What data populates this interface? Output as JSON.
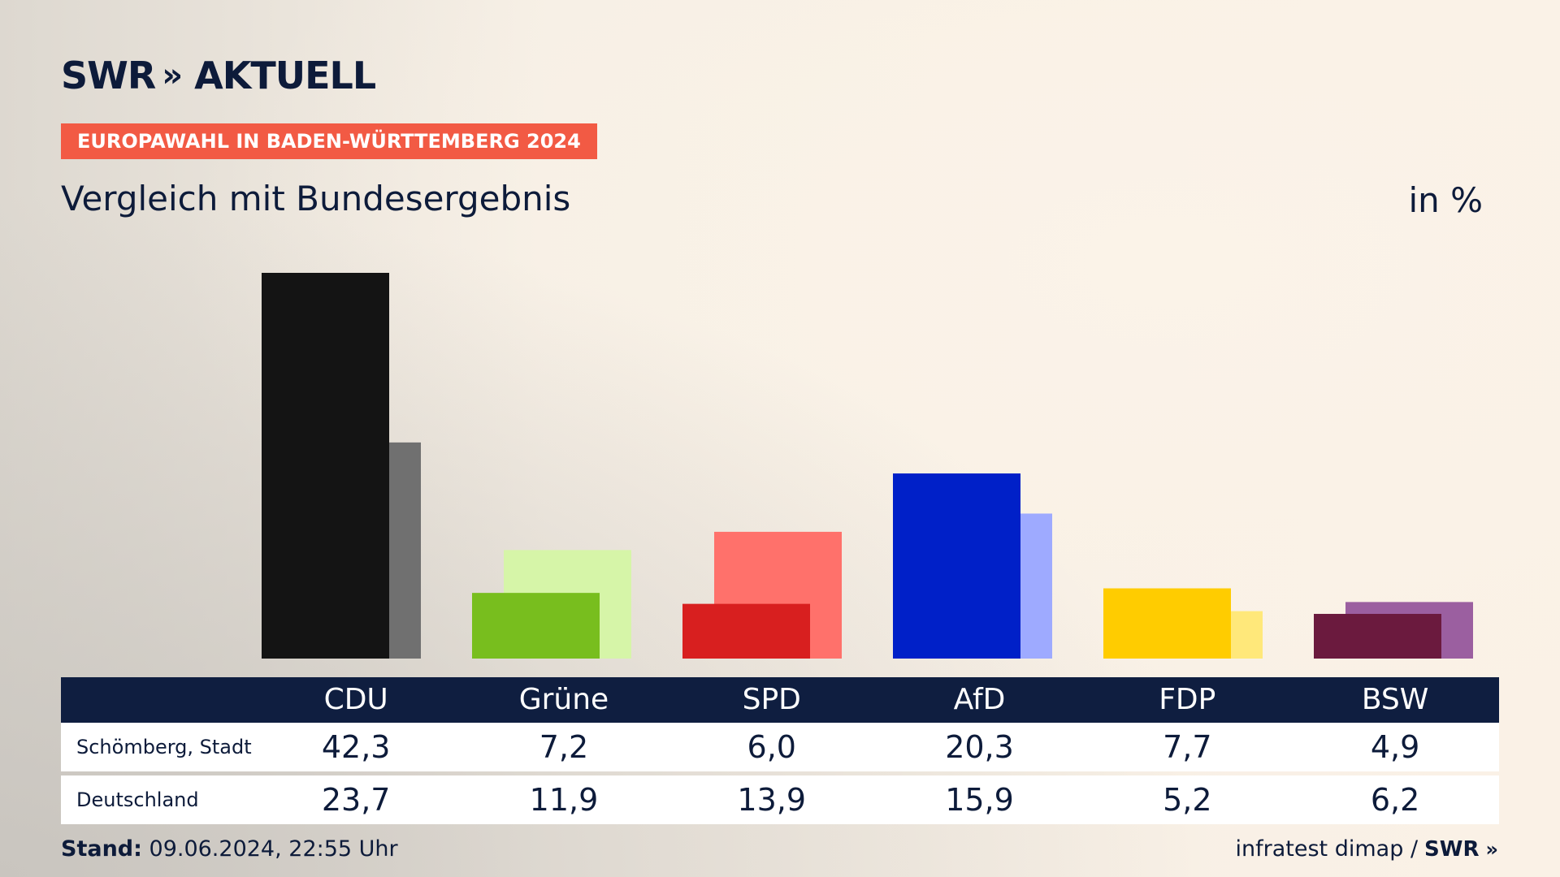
{
  "logo": {
    "brand": "SWR",
    "chevrons": "»",
    "product": "AKTUELL"
  },
  "badge": "EUROPAWAHL IN BADEN-WÜRTTEMBERG 2024",
  "subtitle": "Vergleich mit Bundesergebnis",
  "unit": "in %",
  "footer": {
    "stand_label": "Stand:",
    "stand_value": "09.06.2024, 22:55 Uhr",
    "source": "infratest dimap /",
    "source_brand": "SWR",
    "source_chevrons": "»"
  },
  "chart_data": {
    "type": "bar",
    "categories": [
      "CDU",
      "Grüne",
      "SPD",
      "AfD",
      "FDP",
      "BSW"
    ],
    "series": [
      {
        "name": "Schömberg, Stadt",
        "values": [
          42.3,
          7.2,
          6.0,
          20.3,
          7.7,
          4.9
        ]
      },
      {
        "name": "Deutschland",
        "values": [
          23.7,
          11.9,
          13.9,
          15.9,
          5.2,
          6.2
        ]
      }
    ],
    "colors": {
      "primary": [
        "#141414",
        "#78be1e",
        "#d81f1f",
        "#0020c8",
        "#ffcc00",
        "#6b1a3e"
      ],
      "secondary": [
        "#707070",
        "#d6f5a8",
        "#ff716b",
        "#9eaaff",
        "#ffe87a",
        "#9b5fa0"
      ]
    },
    "ylim": [
      0,
      42.3
    ],
    "grid": false,
    "legend": "table-below"
  }
}
